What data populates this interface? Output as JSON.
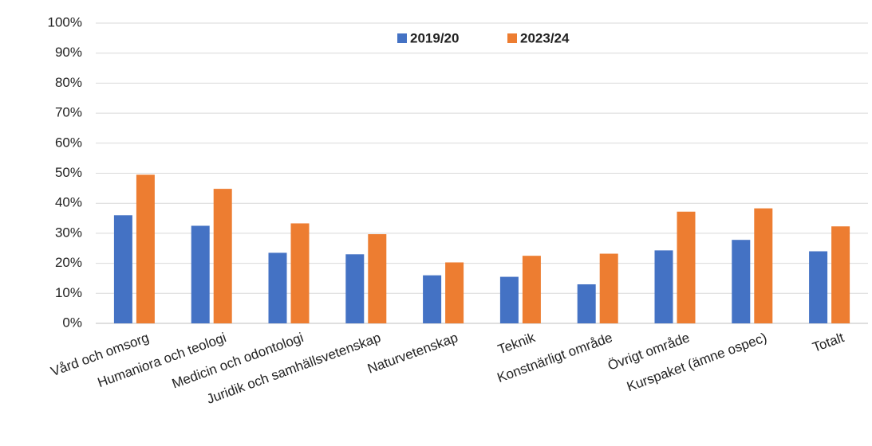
{
  "chart_data": {
    "type": "bar",
    "categories": [
      "Vård och omsorg",
      "Humaniora och teologi",
      "Medicin och odontologi",
      "Juridik och samhällsvetenskap",
      "Naturvetenskap",
      "Teknik",
      "Konstnärligt område",
      "Övrigt område",
      "Kurspaket (ämne ospec)",
      "Totalt"
    ],
    "series": [
      {
        "name": "2019/20",
        "color": "#4472c4",
        "values": [
          36,
          32.5,
          23.5,
          23,
          16,
          15.5,
          13,
          24.3,
          27.8,
          24
        ]
      },
      {
        "name": "2023/24",
        "color": "#ed7d31",
        "values": [
          49.5,
          44.8,
          33.3,
          29.7,
          20.3,
          22.5,
          23.2,
          37.2,
          38.3,
          32.3
        ]
      }
    ],
    "ylim": [
      0,
      100
    ],
    "yticks": [
      {
        "value": 0,
        "label": "0%"
      },
      {
        "value": 10,
        "label": "10%"
      },
      {
        "value": 20,
        "label": "20%"
      },
      {
        "value": 30,
        "label": "30%"
      },
      {
        "value": 40,
        "label": "40%"
      },
      {
        "value": 50,
        "label": "50%"
      },
      {
        "value": 60,
        "label": "60%"
      },
      {
        "value": 70,
        "label": "70%"
      },
      {
        "value": 80,
        "label": "80%"
      },
      {
        "value": 90,
        "label": "90%"
      },
      {
        "value": 100,
        "label": "100%"
      }
    ],
    "grid": true,
    "legend": "top"
  }
}
